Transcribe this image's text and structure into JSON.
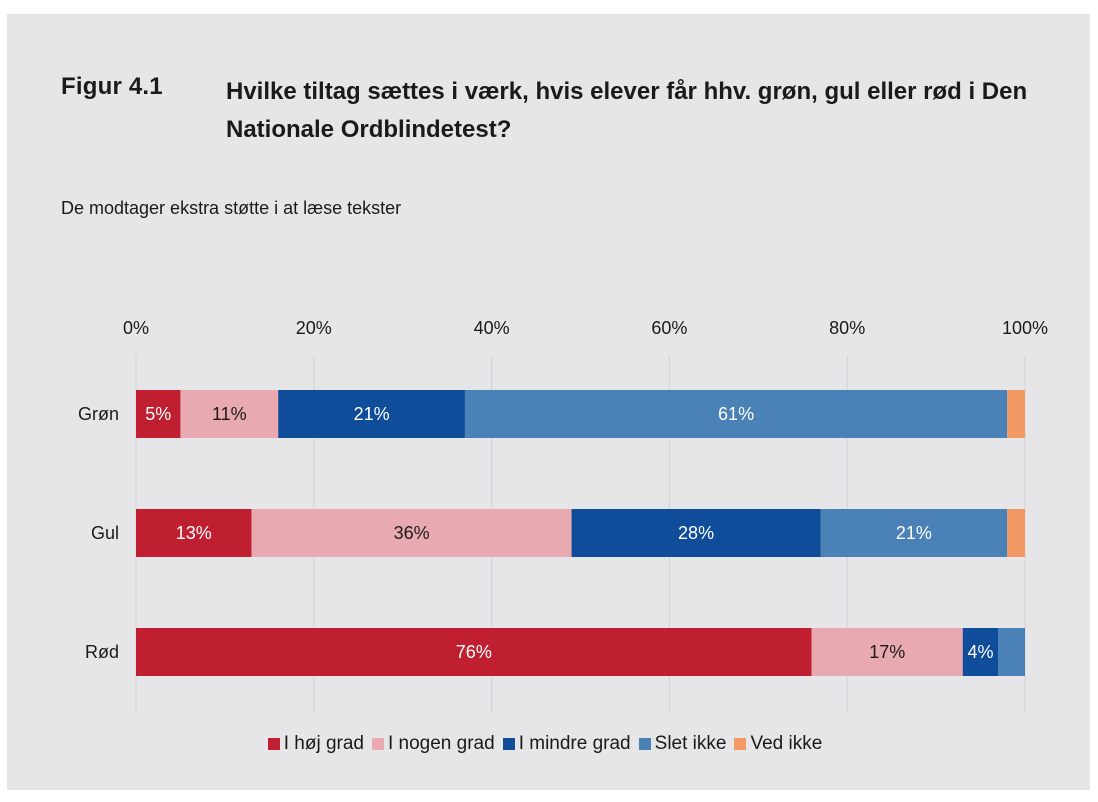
{
  "figure": {
    "label": "Figur 4.1",
    "title": "Hvilke tiltag sættes i værk, hvis elever får hhv. grøn, gul eller rød i Den Nationale Ordblindetest?",
    "subtitle": "De modtager ekstra støtte i at læse tekster"
  },
  "chart_data": {
    "type": "bar",
    "orientation": "horizontal-stacked-100",
    "categories": [
      "Grøn",
      "Gul",
      "Rød"
    ],
    "x_ticks": [
      "0%",
      "20%",
      "40%",
      "60%",
      "80%",
      "100%"
    ],
    "xlim": [
      0,
      100
    ],
    "grid": true,
    "legend_position": "bottom",
    "series": [
      {
        "name": "I høj grad",
        "color": "#c01f32",
        "values": [
          5,
          13,
          76
        ],
        "labels": [
          "5%",
          "13%",
          "76%"
        ]
      },
      {
        "name": "I nogen grad",
        "color": "#e8a9b0",
        "values": [
          11,
          36,
          17
        ],
        "labels": [
          "11%",
          "36%",
          "17%"
        ]
      },
      {
        "name": "I mindre grad",
        "color": "#0f4c99",
        "values": [
          21,
          28,
          4
        ],
        "labels": [
          "21%",
          "28%",
          "4%"
        ]
      },
      {
        "name": "Slet ikke",
        "color": "#4a82b8",
        "values": [
          61,
          21,
          3
        ],
        "labels": [
          "61%",
          "21%",
          ""
        ]
      },
      {
        "name": "Ved ikke",
        "color": "#f39a64",
        "values": [
          2,
          2,
          0
        ],
        "labels": [
          "",
          "",
          ""
        ]
      }
    ]
  }
}
